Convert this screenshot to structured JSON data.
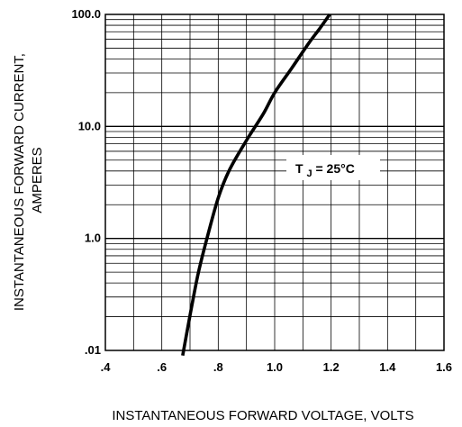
{
  "chart_data": {
    "type": "line",
    "title": "",
    "xlabel": "INSTANTANEOUS FORWARD VOLTAGE, VOLTS",
    "ylabel": [
      "INSTANTANEOUS FORWARD CURRENT,",
      "AMPERES"
    ],
    "x_scale": "linear",
    "xlim": [
      0.4,
      1.6
    ],
    "x_ticks": [
      0.4,
      0.6,
      0.8,
      1.0,
      1.2,
      1.4,
      1.6
    ],
    "x_tick_labels": [
      ".4",
      ".6",
      ".8",
      "1.0",
      "1.2",
      "1.4",
      "1.6"
    ],
    "y_scale": "log",
    "y_decade_labels": [
      ".01",
      "1.0",
      "10.0",
      "100.0"
    ],
    "grid": true,
    "series": [
      {
        "x": [
          0.674,
          0.69,
          0.71,
          0.73,
          0.76,
          0.8,
          0.84,
          0.9,
          0.96,
          1.0,
          1.06,
          1.12,
          1.16,
          1.195
        ],
        "y": [
          0.09,
          0.15,
          0.28,
          0.5,
          1.0,
          2.3,
          4.1,
          7.5,
          13.0,
          20.0,
          33.0,
          55.0,
          75.0,
          100.0
        ]
      }
    ],
    "annotation": {
      "main": "T",
      "subscript": "J",
      "rest": " = 25°C"
    },
    "colors": {
      "curve": "#000000",
      "grid": "#000000"
    }
  }
}
